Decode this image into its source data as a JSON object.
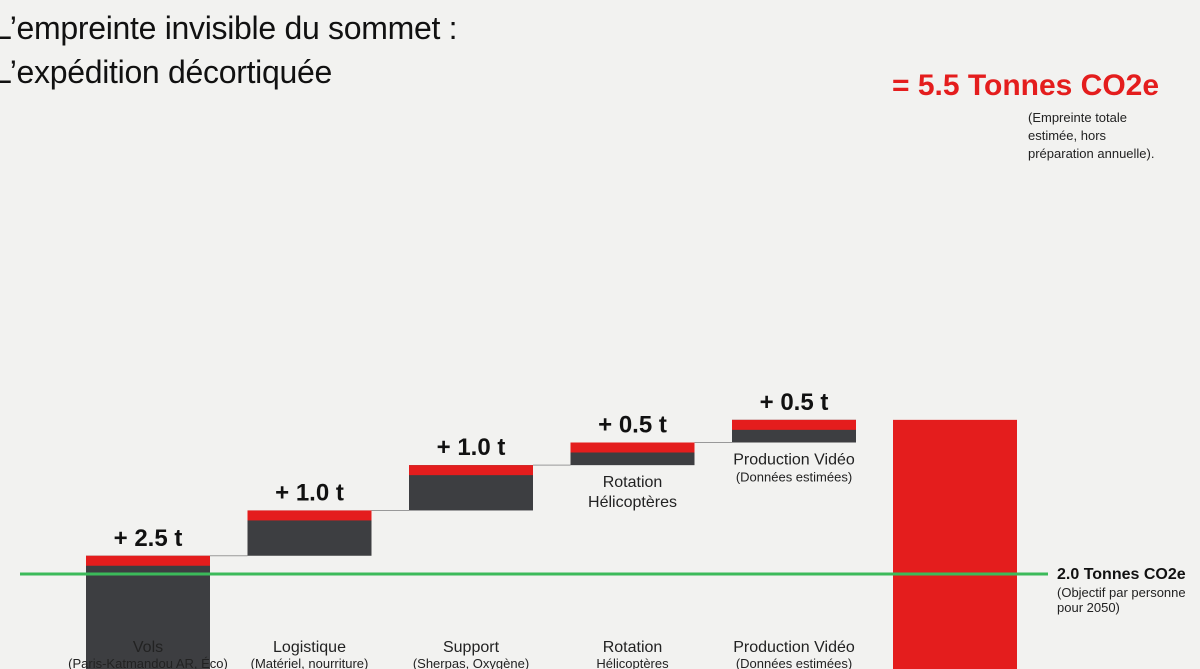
{
  "title": {
    "line1": "L’empreinte invisible du sommet :",
    "line2": "L’expédition décortiquée"
  },
  "colors": {
    "bar": "#3d3e41",
    "accent": "#e41d1d",
    "target": "#3cba5a",
    "connector": "#999999"
  },
  "chart_data": {
    "type": "bar",
    "subtype": "waterfall",
    "unit": "t",
    "ylim": [
      0,
      6
    ],
    "grid": false,
    "legend": "none",
    "steps": [
      {
        "name": "Vols",
        "sub": "(Paris-Katmandou AR, Éco)",
        "value": 2.5,
        "label": "+ 2.5 t",
        "upper": [],
        "upper_sub": ""
      },
      {
        "name": "Logistique",
        "sub": "(Matériel, nourriture)",
        "value": 1.0,
        "label": "+ 1.0 t",
        "upper": [],
        "upper_sub": ""
      },
      {
        "name": "Support",
        "sub": "(Sherpas, Oxygène)",
        "value": 1.0,
        "label": "+ 1.0 t",
        "upper": [],
        "upper_sub": ""
      },
      {
        "name": "Rotation",
        "sub": "Hélicoptères",
        "value": 0.5,
        "label": "+ 0.5 t",
        "upper": [
          "Rotation",
          "Hélicoptères"
        ],
        "upper_sub": ""
      },
      {
        "name": "Production Vidéo",
        "sub": "(Données estimées)",
        "value": 0.5,
        "label": "+ 0.5 t",
        "upper": [
          "Production Vidéo"
        ],
        "upper_sub": "(Données estimées)"
      }
    ],
    "total": {
      "value": 5.5,
      "label": "= 5.5 Tonnes CO2e",
      "note": [
        "(Empreinte totale",
        "estimée, hors",
        "préparation annuelle)."
      ]
    },
    "target": {
      "value": 2.0,
      "label": "2.0 Tonnes CO2e",
      "note": [
        "(Objectif par personne",
        "pour 2050)"
      ]
    }
  }
}
